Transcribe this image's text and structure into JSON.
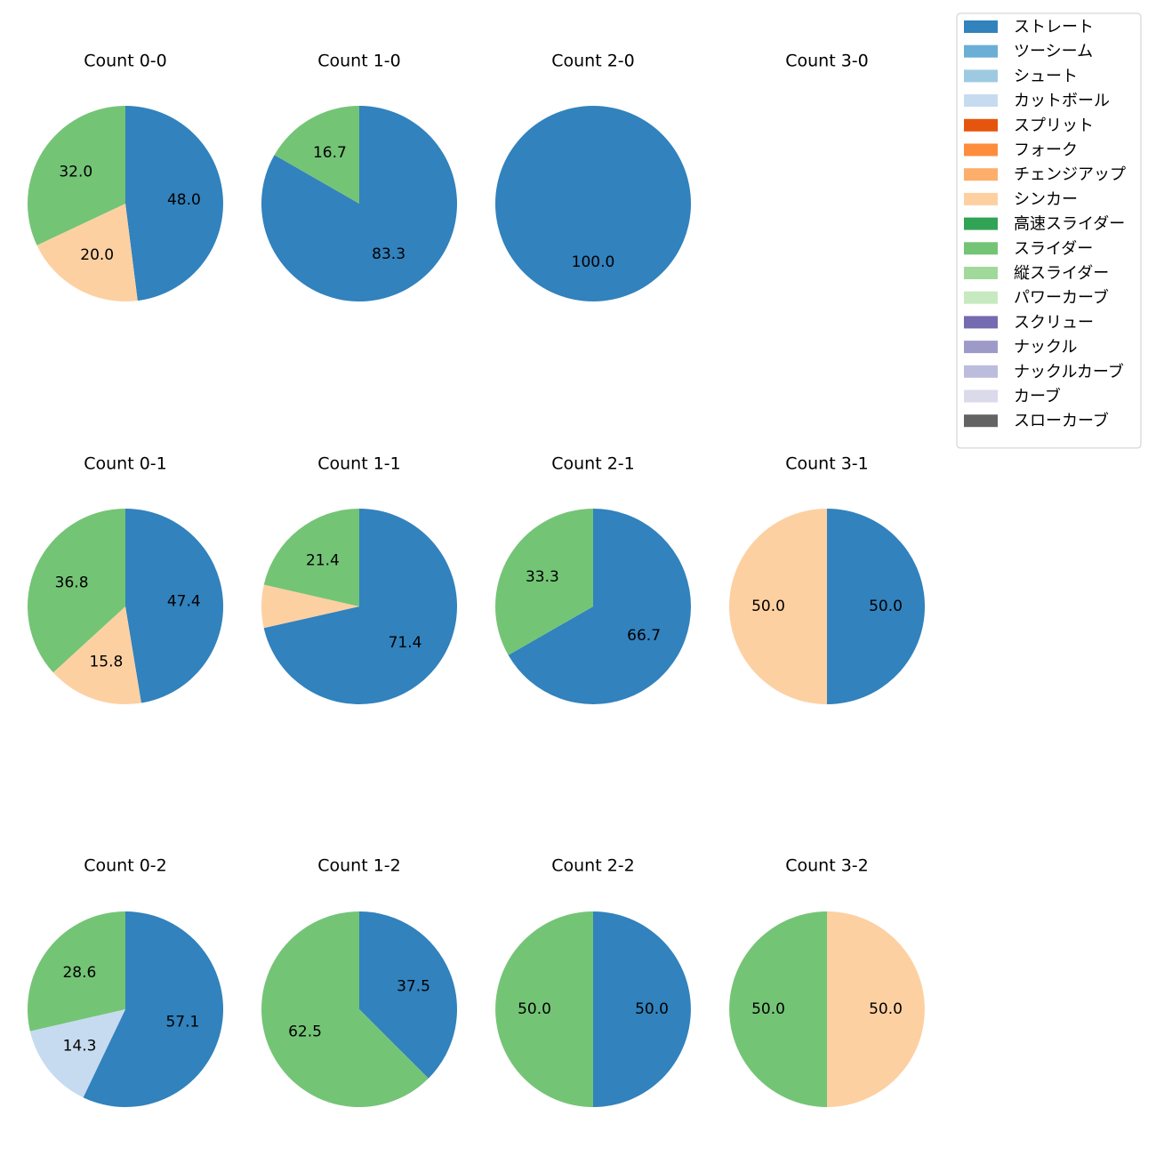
{
  "chart_data": {
    "type": "pie",
    "legend": {
      "placement": "top-right",
      "entries": [
        {
          "name": "ストレート",
          "color": "#3182bd"
        },
        {
          "name": "ツーシーム",
          "color": "#6baed6"
        },
        {
          "name": "シュート",
          "color": "#9ecae1"
        },
        {
          "name": "カットボール",
          "color": "#c6dbef"
        },
        {
          "name": "スプリット",
          "color": "#e6550d"
        },
        {
          "name": "フォーク",
          "color": "#fd8d3c"
        },
        {
          "name": "チェンジアップ",
          "color": "#fdae6b"
        },
        {
          "name": "シンカー",
          "color": "#fdd0a2"
        },
        {
          "name": "高速スライダー",
          "color": "#31a354"
        },
        {
          "name": "スライダー",
          "color": "#74c476"
        },
        {
          "name": "縦スライダー",
          "color": "#a1d99b"
        },
        {
          "name": "パワーカーブ",
          "color": "#c7e9c0"
        },
        {
          "name": "スクリュー",
          "color": "#756bb1"
        },
        {
          "name": "ナックル",
          "color": "#9e9ac8"
        },
        {
          "name": "ナックルカーブ",
          "color": "#bcbddc"
        },
        {
          "name": "カーブ",
          "color": "#dadaeb"
        },
        {
          "name": "スローカーブ",
          "color": "#636363"
        }
      ]
    },
    "charts": [
      {
        "title": "Count 0-0",
        "slices": [
          {
            "pitch": "ストレート",
            "value": 48.0,
            "label": "48.0"
          },
          {
            "pitch": "シンカー",
            "value": 20.0,
            "label": "20.0"
          },
          {
            "pitch": "スライダー",
            "value": 32.0,
            "label": "32.0"
          }
        ]
      },
      {
        "title": "Count 1-0",
        "slices": [
          {
            "pitch": "ストレート",
            "value": 83.3,
            "label": "83.3"
          },
          {
            "pitch": "スライダー",
            "value": 16.7,
            "label": "16.7"
          }
        ]
      },
      {
        "title": "Count 2-0",
        "slices": [
          {
            "pitch": "ストレート",
            "value": 100.0,
            "label": "100.0"
          }
        ]
      },
      {
        "title": "Count 3-0",
        "slices": []
      },
      {
        "title": "Count 0-1",
        "slices": [
          {
            "pitch": "ストレート",
            "value": 47.4,
            "label": "47.4"
          },
          {
            "pitch": "シンカー",
            "value": 15.8,
            "label": "15.8"
          },
          {
            "pitch": "スライダー",
            "value": 36.8,
            "label": "36.8"
          }
        ]
      },
      {
        "title": "Count 1-1",
        "slices": [
          {
            "pitch": "ストレート",
            "value": 71.4,
            "label": "71.4"
          },
          {
            "pitch": "シンカー",
            "value": 7.1,
            "label": ""
          },
          {
            "pitch": "スライダー",
            "value": 21.4,
            "label": "21.4"
          }
        ]
      },
      {
        "title": "Count 2-1",
        "slices": [
          {
            "pitch": "ストレート",
            "value": 66.7,
            "label": "66.7"
          },
          {
            "pitch": "スライダー",
            "value": 33.3,
            "label": "33.3"
          }
        ]
      },
      {
        "title": "Count 3-1",
        "slices": [
          {
            "pitch": "ストレート",
            "value": 50.0,
            "label": "50.0"
          },
          {
            "pitch": "シンカー",
            "value": 50.0,
            "label": "50.0"
          }
        ]
      },
      {
        "title": "Count 0-2",
        "slices": [
          {
            "pitch": "ストレート",
            "value": 57.1,
            "label": "57.1"
          },
          {
            "pitch": "カットボール",
            "value": 14.3,
            "label": "14.3"
          },
          {
            "pitch": "スライダー",
            "value": 28.6,
            "label": "28.6"
          }
        ]
      },
      {
        "title": "Count 1-2",
        "slices": [
          {
            "pitch": "ストレート",
            "value": 37.5,
            "label": "37.5"
          },
          {
            "pitch": "スライダー",
            "value": 62.5,
            "label": "62.5"
          }
        ]
      },
      {
        "title": "Count 2-2",
        "slices": [
          {
            "pitch": "ストレート",
            "value": 50.0,
            "label": "50.0"
          },
          {
            "pitch": "スライダー",
            "value": 50.0,
            "label": "50.0"
          }
        ]
      },
      {
        "title": "Count 3-2",
        "slices": [
          {
            "pitch": "シンカー",
            "value": 50.0,
            "label": "50.0"
          },
          {
            "pitch": "スライダー",
            "value": 50.0,
            "label": "50.0"
          }
        ]
      }
    ]
  }
}
